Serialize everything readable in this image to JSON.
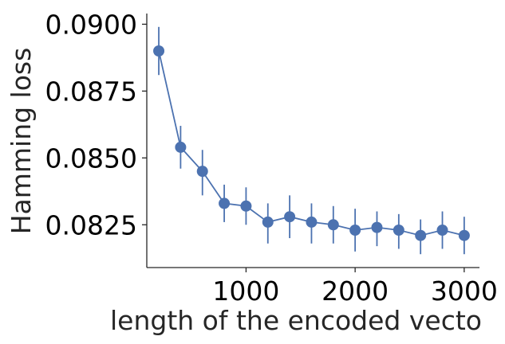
{
  "chart_data": {
    "type": "line",
    "xlabel": "length of the encoded vecto",
    "ylabel": "Hamming loss",
    "xlim": [
      90,
      3140
    ],
    "ylim": [
      0.0809,
      0.0904
    ],
    "x_ticks": [
      1000,
      2000,
      3000
    ],
    "x_tick_labels": [
      "1000",
      "2000",
      "3000"
    ],
    "y_ticks": [
      0.0825,
      0.085,
      0.0875,
      0.09
    ],
    "y_tick_labels": [
      "0.0825",
      "0.0850",
      "0.0875",
      "0.0900"
    ],
    "grid": false,
    "legend": "none",
    "color": "#4c72b0",
    "series": [
      {
        "x": [
          200,
          400,
          600,
          800,
          1000,
          1200,
          1400,
          1600,
          1800,
          2000,
          2200,
          2400,
          2600,
          2800,
          3000
        ],
        "y": [
          0.089,
          0.0854,
          0.0845,
          0.0833,
          0.0832,
          0.0826,
          0.0828,
          0.0826,
          0.0825,
          0.0823,
          0.0824,
          0.0823,
          0.0821,
          0.0823,
          0.0821
        ],
        "err_low": [
          0.0881,
          0.0846,
          0.0836,
          0.0826,
          0.0825,
          0.0818,
          0.082,
          0.0818,
          0.0818,
          0.0815,
          0.0817,
          0.0816,
          0.0814,
          0.0816,
          0.0814
        ],
        "err_high": [
          0.0899,
          0.0862,
          0.0853,
          0.084,
          0.0839,
          0.0833,
          0.0836,
          0.0833,
          0.0832,
          0.0831,
          0.083,
          0.0829,
          0.0827,
          0.083,
          0.0828
        ]
      }
    ]
  }
}
